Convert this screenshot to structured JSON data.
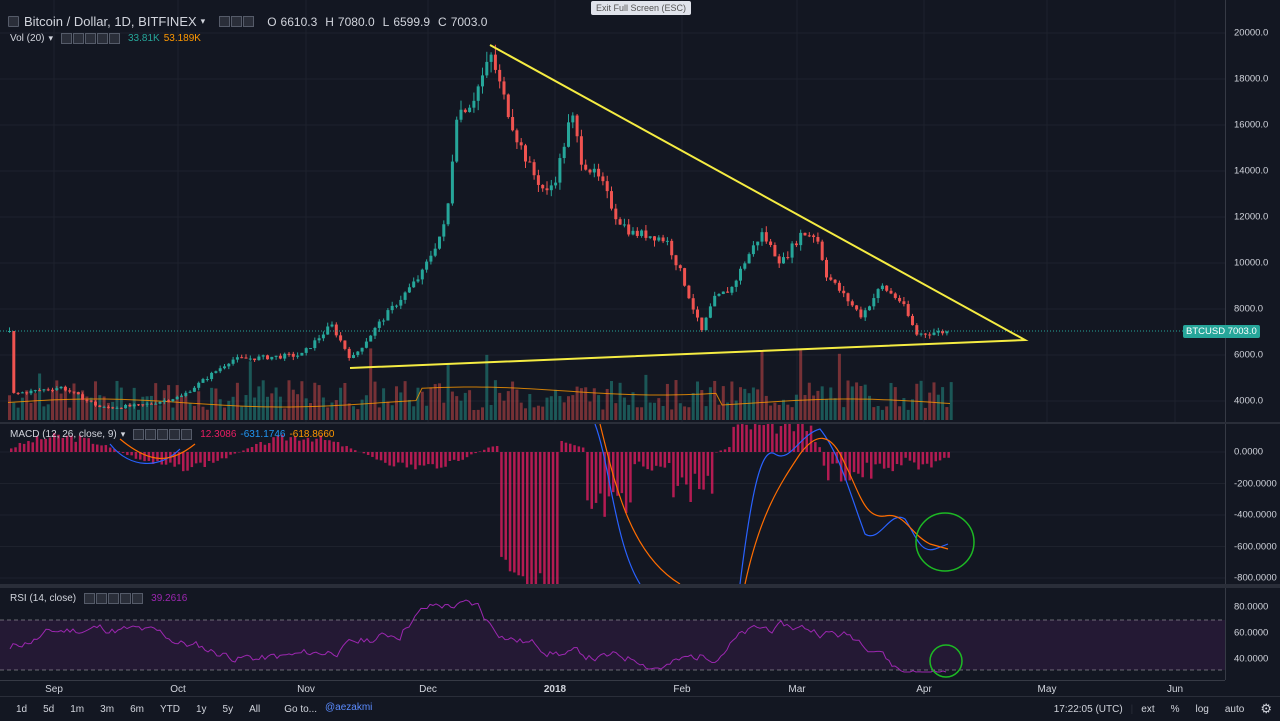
{
  "header": {
    "symbol_title": "Bitcoin / Dollar, 1D, BITFINEX",
    "ohlc": [
      {
        "k": "O",
        "v": "6610.3"
      },
      {
        "k": "H",
        "v": "7080.0"
      },
      {
        "k": "L",
        "v": "6599.9"
      },
      {
        "k": "C",
        "v": "7003.0"
      }
    ]
  },
  "exit_fullscreen": "Exit Full Screen (ESC)",
  "volume": {
    "label": "Vol (20)",
    "value1": "33.81K",
    "value2": "53.189K"
  },
  "macd": {
    "label": "MACD (12, 26, close, 9)",
    "value1": "12.3086",
    "value2": "-631.1746",
    "value3": "-618.8660"
  },
  "rsi": {
    "label": "RSI (14, close)",
    "value": "39.2616"
  },
  "price_axis": {
    "ticks": [
      "20000.0",
      "18000.0",
      "16000.0",
      "14000.0",
      "12000.0",
      "10000.0",
      "8000.0",
      "6000.0",
      "4000.0"
    ],
    "last_tag": "BTCUSD 7003.0"
  },
  "macd_axis": {
    "ticks": [
      "0.0000",
      "-200.0000",
      "-400.0000",
      "-600.0000",
      "-800.0000"
    ]
  },
  "rsi_axis": {
    "ticks": [
      "80.0000",
      "60.0000",
      "40.0000"
    ]
  },
  "time_axis": {
    "labels": [
      "Sep",
      "Oct",
      "Nov",
      "Dec",
      "2018",
      "Feb",
      "Mar",
      "Apr",
      "May",
      "Jun"
    ]
  },
  "toolbar": {
    "ranges": [
      "1d",
      "5d",
      "1m",
      "3m",
      "6m",
      "YTD",
      "1y",
      "5y",
      "All"
    ],
    "goto": "Go to...",
    "author": "@aezakmi",
    "clock": "17:22:05 (UTC)",
    "right": [
      "ext",
      "%",
      "log",
      "auto"
    ]
  },
  "colors": {
    "background": "#131722",
    "up": "#26a69a",
    "down": "#ef5350",
    "trendline": "#f5ec42",
    "macd_line": "#2962ff",
    "signal_line": "#ff6d00",
    "rsi_line": "#9c27b0",
    "highlight_circle": "#1db924"
  }
}
